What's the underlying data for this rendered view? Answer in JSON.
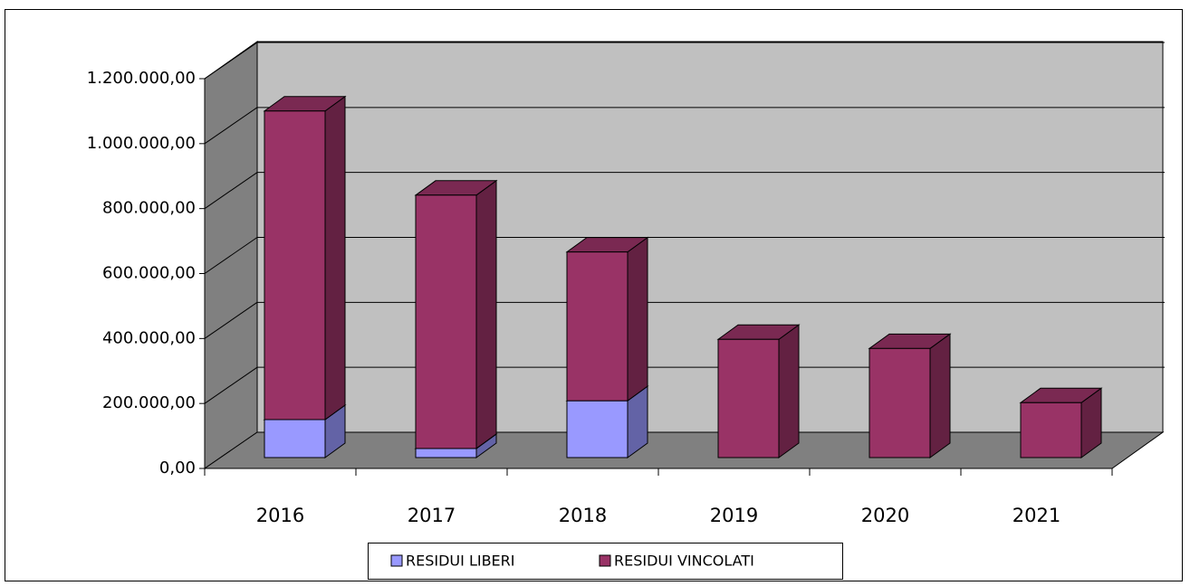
{
  "chart_data": {
    "type": "bar3d_stacked",
    "categories": [
      "2016",
      "2017",
      "2018",
      "2019",
      "2020",
      "2021"
    ],
    "series": [
      {
        "name": "RESIDUI LIBERI",
        "color": "#9999ff",
        "values": [
          117000,
          28000,
          175000,
          0,
          0,
          0
        ]
      },
      {
        "name": "RESIDUI VINCOLATI",
        "color": "#993366",
        "values": [
          950000,
          780000,
          458000,
          364000,
          336000,
          169000
        ]
      }
    ],
    "ylim": [
      0,
      1200000
    ],
    "yticks": [
      {
        "value": 0,
        "label": "0,00"
      },
      {
        "value": 200000,
        "label": "200.000,00"
      },
      {
        "value": 400000,
        "label": "400.000,00"
      },
      {
        "value": 600000,
        "label": "600.000,00"
      },
      {
        "value": 800000,
        "label": "800.000,00"
      },
      {
        "value": 1000000,
        "label": "1.000.000,00"
      },
      {
        "value": 1200000,
        "label": "1.200.000,00"
      }
    ],
    "grid": true,
    "legend": "bottom"
  }
}
